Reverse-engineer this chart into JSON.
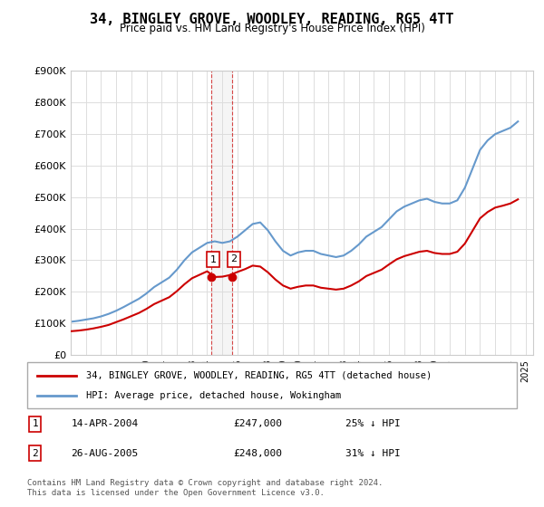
{
  "title": "34, BINGLEY GROVE, WOODLEY, READING, RG5 4TT",
  "subtitle": "Price paid vs. HM Land Registry's House Price Index (HPI)",
  "ylabel_ticks": [
    "£0",
    "£100K",
    "£200K",
    "£300K",
    "£400K",
    "£500K",
    "£600K",
    "£700K",
    "£800K",
    "£900K"
  ],
  "ylim": [
    0,
    900000
  ],
  "xlim_start": 1995.0,
  "xlim_end": 2025.5,
  "legend_line1": "34, BINGLEY GROVE, WOODLEY, READING, RG5 4TT (detached house)",
  "legend_line2": "HPI: Average price, detached house, Wokingham",
  "annotation1_label": "1",
  "annotation1_date": "14-APR-2004",
  "annotation1_price": "£247,000",
  "annotation1_hpi": "25% ↓ HPI",
  "annotation2_label": "2",
  "annotation2_date": "26-AUG-2005",
  "annotation2_price": "£248,000",
  "annotation2_hpi": "31% ↓ HPI",
  "footer": "Contains HM Land Registry data © Crown copyright and database right 2024.\nThis data is licensed under the Open Government Licence v3.0.",
  "hpi_color": "#6699cc",
  "price_color": "#cc0000",
  "point1_x": 2004.28,
  "point1_y": 247000,
  "point2_x": 2005.65,
  "point2_y": 248000,
  "vline_x1": 2004.28,
  "vline_x2": 2005.65,
  "hpi_x": [
    1995,
    1995.5,
    1996,
    1996.5,
    1997,
    1997.5,
    1998,
    1998.5,
    1999,
    1999.5,
    2000,
    2000.5,
    2001,
    2001.5,
    2002,
    2002.5,
    2003,
    2003.5,
    2004,
    2004.5,
    2005,
    2005.5,
    2006,
    2006.5,
    2007,
    2007.5,
    2008,
    2008.5,
    2009,
    2009.5,
    2010,
    2010.5,
    2011,
    2011.5,
    2012,
    2012.5,
    2013,
    2013.5,
    2014,
    2014.5,
    2015,
    2015.5,
    2016,
    2016.5,
    2017,
    2017.5,
    2018,
    2018.5,
    2019,
    2019.5,
    2020,
    2020.5,
    2021,
    2021.5,
    2022,
    2022.5,
    2023,
    2023.5,
    2024,
    2024.5
  ],
  "hpi_y": [
    105000,
    108000,
    112000,
    116000,
    122000,
    130000,
    140000,
    152000,
    165000,
    178000,
    195000,
    215000,
    230000,
    245000,
    270000,
    300000,
    325000,
    340000,
    355000,
    360000,
    355000,
    360000,
    375000,
    395000,
    415000,
    420000,
    395000,
    360000,
    330000,
    315000,
    325000,
    330000,
    330000,
    320000,
    315000,
    310000,
    315000,
    330000,
    350000,
    375000,
    390000,
    405000,
    430000,
    455000,
    470000,
    480000,
    490000,
    495000,
    485000,
    480000,
    480000,
    490000,
    530000,
    590000,
    650000,
    680000,
    700000,
    710000,
    720000,
    740000
  ],
  "price_x": [
    1995,
    1995.5,
    1996,
    1996.5,
    1997,
    1997.5,
    1998,
    1998.5,
    1999,
    1999.5,
    2000,
    2000.5,
    2001,
    2001.5,
    2002,
    2002.5,
    2003,
    2003.5,
    2004,
    2004.5,
    2005,
    2005.5,
    2006,
    2006.5,
    2007,
    2007.5,
    2008,
    2008.5,
    2009,
    2009.5,
    2010,
    2010.5,
    2011,
    2011.5,
    2012,
    2012.5,
    2013,
    2013.5,
    2014,
    2014.5,
    2015,
    2015.5,
    2016,
    2016.5,
    2017,
    2017.5,
    2018,
    2018.5,
    2019,
    2019.5,
    2020,
    2020.5,
    2021,
    2021.5,
    2022,
    2022.5,
    2023,
    2023.5,
    2024,
    2024.5
  ],
  "price_y": [
    75000,
    77000,
    80000,
    84000,
    89000,
    95000,
    104000,
    113000,
    123000,
    133000,
    146000,
    161000,
    172000,
    183000,
    202000,
    224000,
    243000,
    254000,
    265000,
    247000,
    248000,
    253000,
    263000,
    272000,
    283000,
    280000,
    262000,
    239000,
    220000,
    210000,
    216000,
    220000,
    220000,
    213000,
    210000,
    207000,
    210000,
    220000,
    233000,
    250000,
    260000,
    270000,
    287000,
    303000,
    313000,
    320000,
    327000,
    330000,
    323000,
    320000,
    320000,
    327000,
    353000,
    393000,
    433000,
    453000,
    467000,
    473000,
    480000,
    493000
  ]
}
